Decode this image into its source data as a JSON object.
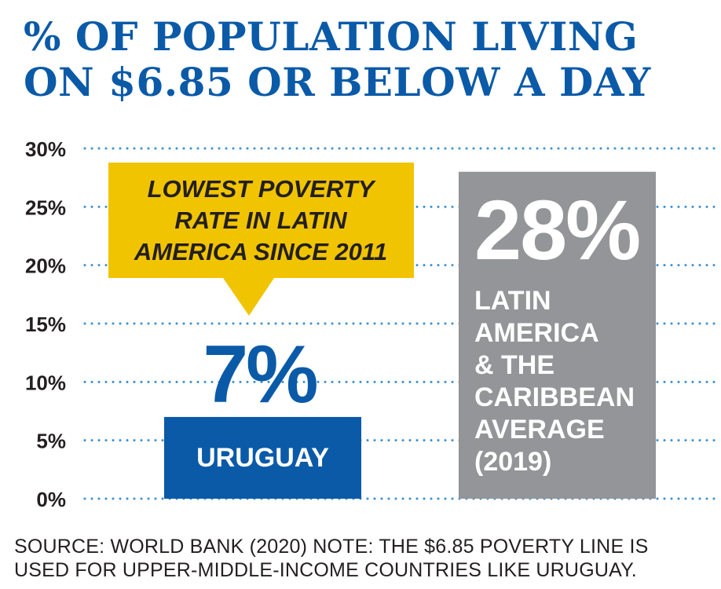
{
  "title": {
    "line1": "% OF POPULATION LIVING",
    "line2": "ON $6.85 OR BELOW A DAY"
  },
  "chart_data": {
    "type": "bar",
    "title": "% OF POPULATION LIVING ON $6.85 OR BELOW A DAY",
    "categories": [
      "URUGUAY",
      "LATIN AMERICA & THE CARIBBEAN AVERAGE (2019)"
    ],
    "values": [
      7,
      28
    ],
    "value_labels": [
      "7%",
      "28%"
    ],
    "category_label_lines": [
      [
        "URUGUAY"
      ],
      [
        "LATIN",
        "AMERICA",
        "& THE",
        "CARIBBEAN",
        "AVERAGE",
        "(2019)"
      ]
    ],
    "colors": [
      "#0a5aa8",
      "#939598"
    ],
    "y_ticks": [
      "0%",
      "5%",
      "10%",
      "15%",
      "20%",
      "25%",
      "30%"
    ],
    "ylim": [
      0,
      30
    ],
    "grid": true,
    "grid_style": "dotted",
    "grid_color": "#3a8fd0",
    "xlabel": "",
    "ylabel": "",
    "annotation": {
      "lines": [
        "LOWEST POVERTY",
        "RATE IN LATIN",
        "AMERICA SINCE 2011"
      ],
      "target": "URUGUAY",
      "color": "#f0c400"
    }
  },
  "footnote": {
    "line1": "SOURCE: WORLD BANK (2020) NOTE: THE $6.85 POVERTY LINE IS",
    "line2": "USED FOR UPPER-MIDDLE-INCOME COUNTRIES LIKE URUGUAY."
  }
}
